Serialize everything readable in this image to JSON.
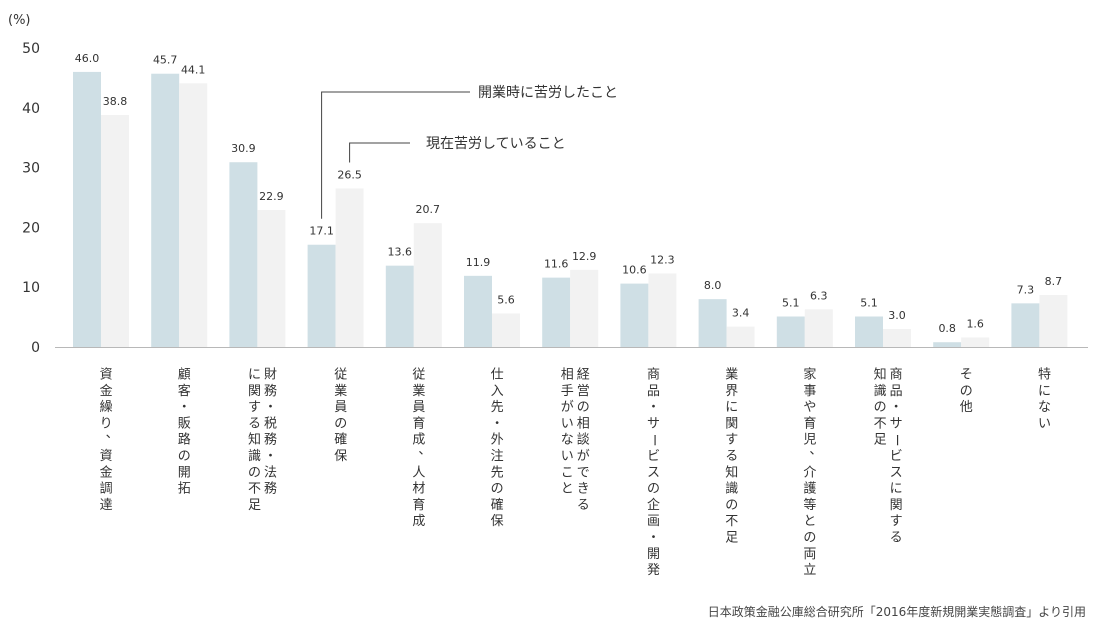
{
  "chart_data": {
    "type": "bar",
    "y_unit_label": "(%)",
    "ylim": [
      0,
      50
    ],
    "yticks": [
      0,
      10,
      20,
      30,
      40,
      50
    ],
    "grid": false,
    "categories": [
      "資金繰り、資金調達",
      "顧客・販路の開拓",
      "財務・税務・法務に関する知識の不足",
      "従業員の確保",
      "従業員育成、人材育成",
      "仕入先・外注先の確保",
      "経営の相談ができる相手がいないこと",
      "商品・サービスの企画・開発",
      "業界に関する知識の不足",
      "家事や育児、介護等との両立",
      "商品・サービスに関する知識の不足",
      "その他",
      "特にない"
    ],
    "category_lines": [
      [
        "資金繰り、資金調達"
      ],
      [
        "顧客・販路の開拓"
      ],
      [
        "財務・税務・法務",
        "に関する知識の不足"
      ],
      [
        "従業員の確保"
      ],
      [
        "従業員育成、人材育成"
      ],
      [
        "仕入先・外注先の確保"
      ],
      [
        "経営の相談ができる",
        "相手がいないこと"
      ],
      [
        "商品・サービスの企画・開発"
      ],
      [
        "業界に関する知識の不足"
      ],
      [
        "家事や育児、介護等との両立"
      ],
      [
        "商品・サービスに関する",
        "知識の不足"
      ],
      [
        "その他"
      ],
      [
        "特にない"
      ]
    ],
    "series": [
      {
        "name": "開業時に苦労したこと",
        "color": "#cfdfe5",
        "values": [
          46.0,
          45.7,
          30.9,
          17.1,
          13.6,
          11.9,
          11.6,
          10.6,
          8.0,
          5.1,
          5.1,
          0.8,
          7.3
        ],
        "labels": [
          "46.0",
          "45.7",
          "30.9",
          "17.1",
          "13.6",
          "11.9",
          "11.6",
          "10.6",
          "8.0",
          "5.1",
          "5.1",
          "0.8",
          "7.3"
        ]
      },
      {
        "name": "現在苦労していること",
        "color": "#f2f2f2",
        "values": [
          38.8,
          44.1,
          22.9,
          26.5,
          20.7,
          5.6,
          12.9,
          12.3,
          3.4,
          6.3,
          3.0,
          1.6,
          8.7
        ],
        "labels": [
          "38.8",
          "44.1",
          "22.9",
          "26.5",
          "20.7",
          "5.6",
          "12.9",
          "12.3",
          "3.4",
          "6.3",
          "3.0",
          "1.6",
          "8.7"
        ]
      }
    ]
  },
  "source": "日本政策金融公庫総合研究所「2016年度新規開業実態調査」より引用"
}
